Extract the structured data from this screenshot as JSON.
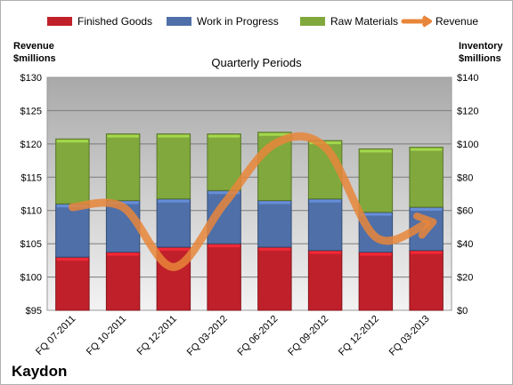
{
  "chart_data": {
    "type": "bar",
    "stacked": true,
    "subtitle": "Quarterly Periods",
    "company": "Kaydon",
    "categories": [
      "FQ 07-2011",
      "FQ 10-2011",
      "FQ 12-2011",
      "FQ 03-2012",
      "FQ 06-2012",
      "FQ 09-2012",
      "FQ 12-2012",
      "FQ 03-2013"
    ],
    "y_left": {
      "label_line1": "Revenue",
      "label_line2": "$millions",
      "range": [
        95,
        130
      ],
      "ticks": [
        "$95",
        "$100",
        "$105",
        "$110",
        "$115",
        "$120",
        "$125",
        "$130"
      ]
    },
    "y_right": {
      "label_line1": "Inventory",
      "label_line2": "$millions",
      "range": [
        0,
        140
      ],
      "ticks": [
        "$0",
        "$20",
        "$40",
        "$60",
        "$80",
        "$100",
        "$120",
        "$140"
      ]
    },
    "series": [
      {
        "name": "Finished Goods",
        "axis": "right",
        "color": "#c0202a",
        "values": [
          32,
          35,
          38,
          40,
          38,
          36,
          35,
          36
        ]
      },
      {
        "name": "Work in Progress",
        "axis": "right",
        "color": "#4f6fa8",
        "values": [
          32,
          31,
          29,
          32,
          28,
          31,
          24,
          26
        ]
      },
      {
        "name": "Raw Materials",
        "axis": "right",
        "color": "#80a83c",
        "values": [
          39,
          40,
          39,
          34,
          41,
          35,
          38,
          36
        ]
      },
      {
        "name": "Revenue",
        "axis": "left",
        "type": "line",
        "color": "#e8863a",
        "values": [
          110.5,
          110.5,
          101.5,
          111.0,
          120.0,
          119.5,
          106.0,
          108.0
        ]
      }
    ],
    "grid": true,
    "legend_position": "top"
  }
}
